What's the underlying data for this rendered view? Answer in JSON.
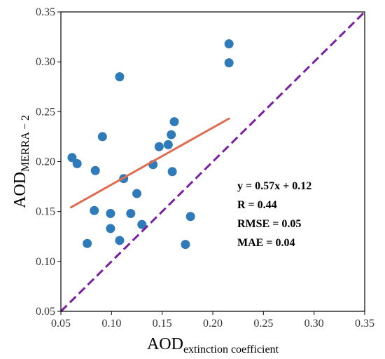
{
  "chart_data": {
    "type": "scatter",
    "xlabel": {
      "base": "AOD",
      "subscript": "extinction coefficient"
    },
    "ylabel": {
      "base": "AOD",
      "subscript": "MERRA − 2"
    },
    "xlim": [
      0.05,
      0.35
    ],
    "ylim": [
      0.05,
      0.35
    ],
    "xticks": [
      "0.05",
      "0.10",
      "0.15",
      "0.20",
      "0.25",
      "0.30",
      "0.35"
    ],
    "yticks": [
      "0.05",
      "0.10",
      "0.15",
      "0.20",
      "0.25",
      "0.30",
      "0.35"
    ],
    "grid": false,
    "points": {
      "x": [
        0.061,
        0.066,
        0.076,
        0.083,
        0.084,
        0.091,
        0.099,
        0.099,
        0.108,
        0.108,
        0.112,
        0.119,
        0.125,
        0.13,
        0.141,
        0.147,
        0.156,
        0.159,
        0.16,
        0.162,
        0.173,
        0.178,
        0.216,
        0.216
      ],
      "y": [
        0.204,
        0.198,
        0.118,
        0.151,
        0.191,
        0.225,
        0.148,
        0.133,
        0.121,
        0.285,
        0.183,
        0.148,
        0.168,
        0.137,
        0.197,
        0.215,
        0.217,
        0.227,
        0.19,
        0.24,
        0.117,
        0.145,
        0.299,
        0.318
      ]
    },
    "fit_line": {
      "slope": 0.57,
      "intercept": 0.12,
      "x_range": [
        0.06,
        0.216
      ]
    },
    "reference_line": "1:1",
    "colors": {
      "points": "#2f7ab8",
      "fit_line": "#e06c50",
      "reference_line": "#7b1fa2"
    },
    "annotations": [
      "y = 0.57x + 0.12",
      "R = 0.44",
      "RMSE = 0.05",
      "MAE = 0.04"
    ]
  }
}
